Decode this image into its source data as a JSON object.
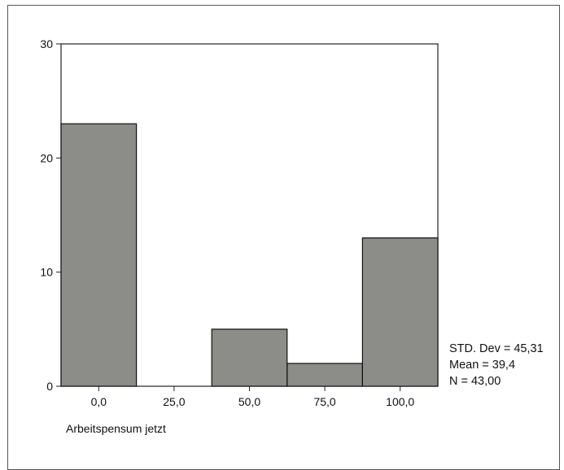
{
  "chart_data": {
    "type": "bar",
    "categories": [
      "0,0",
      "25,0",
      "50,0",
      "75,0",
      "100,0"
    ],
    "values": [
      23,
      0,
      5,
      2,
      13
    ],
    "title": "",
    "xlabel": "Arbeitspensum jetzt",
    "ylabel": "",
    "ylim": [
      0,
      30
    ],
    "yticks": [
      "0",
      "10",
      "20",
      "30"
    ],
    "grid": false,
    "bar_color": "#8c8c88",
    "stats": {
      "std_dev": "STD. Dev = 45,31",
      "mean": "Mean = 39,4",
      "n": "N = 43,00"
    }
  }
}
